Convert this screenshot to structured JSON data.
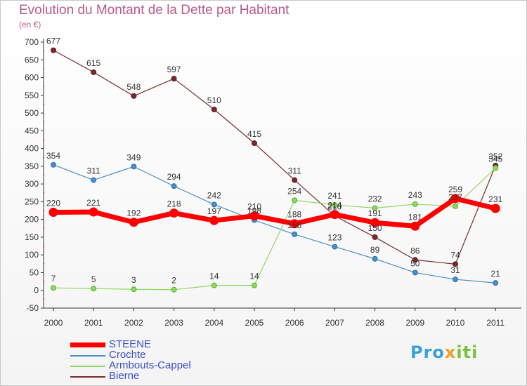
{
  "chart_data": {
    "type": "line",
    "title": "Evolution du Montant de la Dette par Habitant",
    "ylabel": "(en €)",
    "xlabel": "",
    "categories": [
      "2000",
      "2001",
      "2002",
      "2003",
      "2004",
      "2005",
      "2006",
      "2007",
      "2008",
      "2009",
      "2010",
      "2011"
    ],
    "ylim": [
      -50,
      700
    ],
    "yticks": [
      -50,
      0,
      50,
      100,
      150,
      200,
      250,
      300,
      350,
      400,
      450,
      500,
      550,
      600,
      650,
      700
    ],
    "grid": false,
    "legend_position": "bottom-left",
    "series": [
      {
        "name": "STEENE",
        "color": "#ff0000",
        "values": [
          220,
          221,
          192,
          218,
          197,
          210,
          188,
          214,
          191,
          181,
          259,
          231
        ]
      },
      {
        "name": "Crochte",
        "color": "#4a8ec8",
        "values": [
          354,
          311,
          349,
          294,
          242,
          198,
          158,
          123,
          89,
          50,
          31,
          21
        ]
      },
      {
        "name": "Armbouts-Cappel",
        "color": "#8ed860",
        "values": [
          7,
          5,
          3,
          2,
          14,
          14,
          254,
          241,
          232,
          243,
          237,
          345
        ]
      },
      {
        "name": "Bierne",
        "color": "#7a2c2c",
        "values": [
          677,
          615,
          548,
          597,
          510,
          415,
          311,
          210,
          150,
          86,
          74,
          352
        ]
      }
    ]
  },
  "logo": {
    "p1": "Pro",
    "p2": "x",
    "p3": "iti"
  }
}
